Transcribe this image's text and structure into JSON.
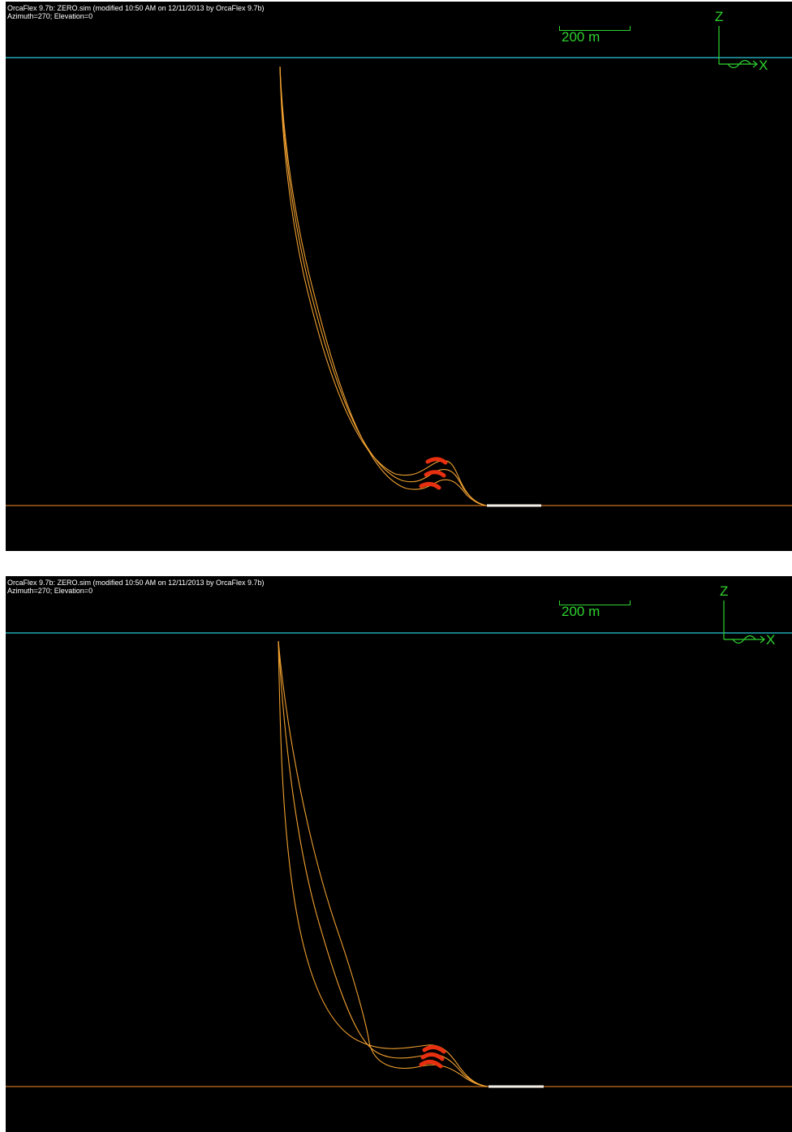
{
  "views": [
    {
      "header_line1": "OrcaFlex 9.7b: ZERO.sim (modified 10:50 AM on 12/11/2013 by OrcaFlex 9.7b)",
      "header_line2": "Azimuth=270; Elevation=0",
      "scale_label": "200 m",
      "axis_z": "Z",
      "axis_x": "X"
    },
    {
      "header_line1": "OrcaFlex 9.7b: ZERO.sim (modified 10:50 AM on 12/11/2013 by OrcaFlex 9.7b)",
      "header_line2": "Azimuth=270; Elevation=0",
      "scale_label": "200 m",
      "axis_z": "Z",
      "axis_x": "X"
    }
  ],
  "colors": {
    "background": "#000000",
    "sea_surface": "#29c8d8",
    "seabed": "#c8701e",
    "line": "#f0a030",
    "buoyancy": "#e83010",
    "anchor_segment": "#f4efe6",
    "annotation": "#2fd22f",
    "header_text": "#ffffff"
  }
}
